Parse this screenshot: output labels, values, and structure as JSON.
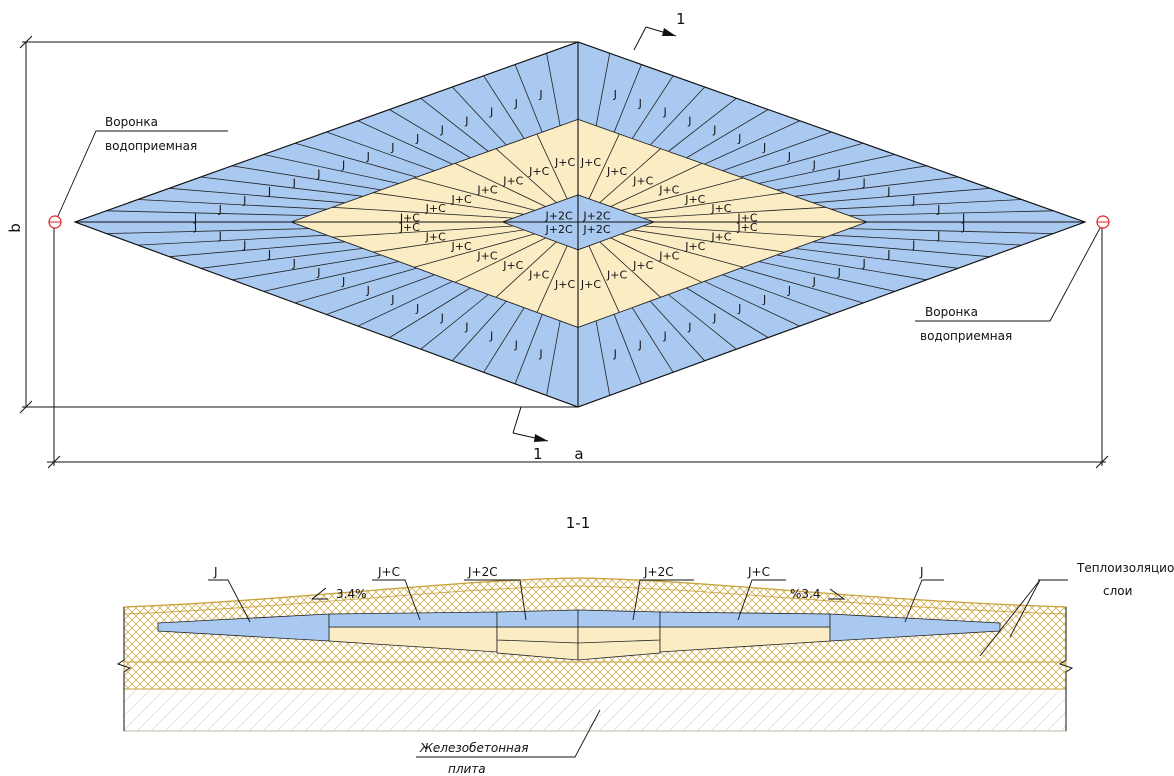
{
  "plan": {
    "dim_width": "a",
    "dim_height": "b",
    "section_mark": "1",
    "funnel_left": [
      "Воронка",
      "водоприемная"
    ],
    "funnel_right": [
      "Воронка",
      "водоприемная"
    ],
    "tile_outer": "J",
    "tile_middle": "J+C",
    "tile_inner": "J+2C"
  },
  "section": {
    "title": "1-1",
    "callout_j_left": "J",
    "callout_jc_left": "J+C",
    "callout_j2c_left": "J+2C",
    "callout_j2c_right": "J+2C",
    "callout_jc_right": "J+C",
    "callout_j_right": "J",
    "slope_left": "3.4%",
    "slope_right": "%3.4",
    "insulation_label": [
      "Теплоизоляционные",
      "слои"
    ],
    "slab_label": [
      "Железобетонная",
      "плита"
    ]
  },
  "colors": {
    "blue_fill": "#a9c9f0",
    "yellow_fill": "#fbecc4",
    "funnel_marker": "#e02020",
    "insulation_hatch": "#c9a23a"
  }
}
